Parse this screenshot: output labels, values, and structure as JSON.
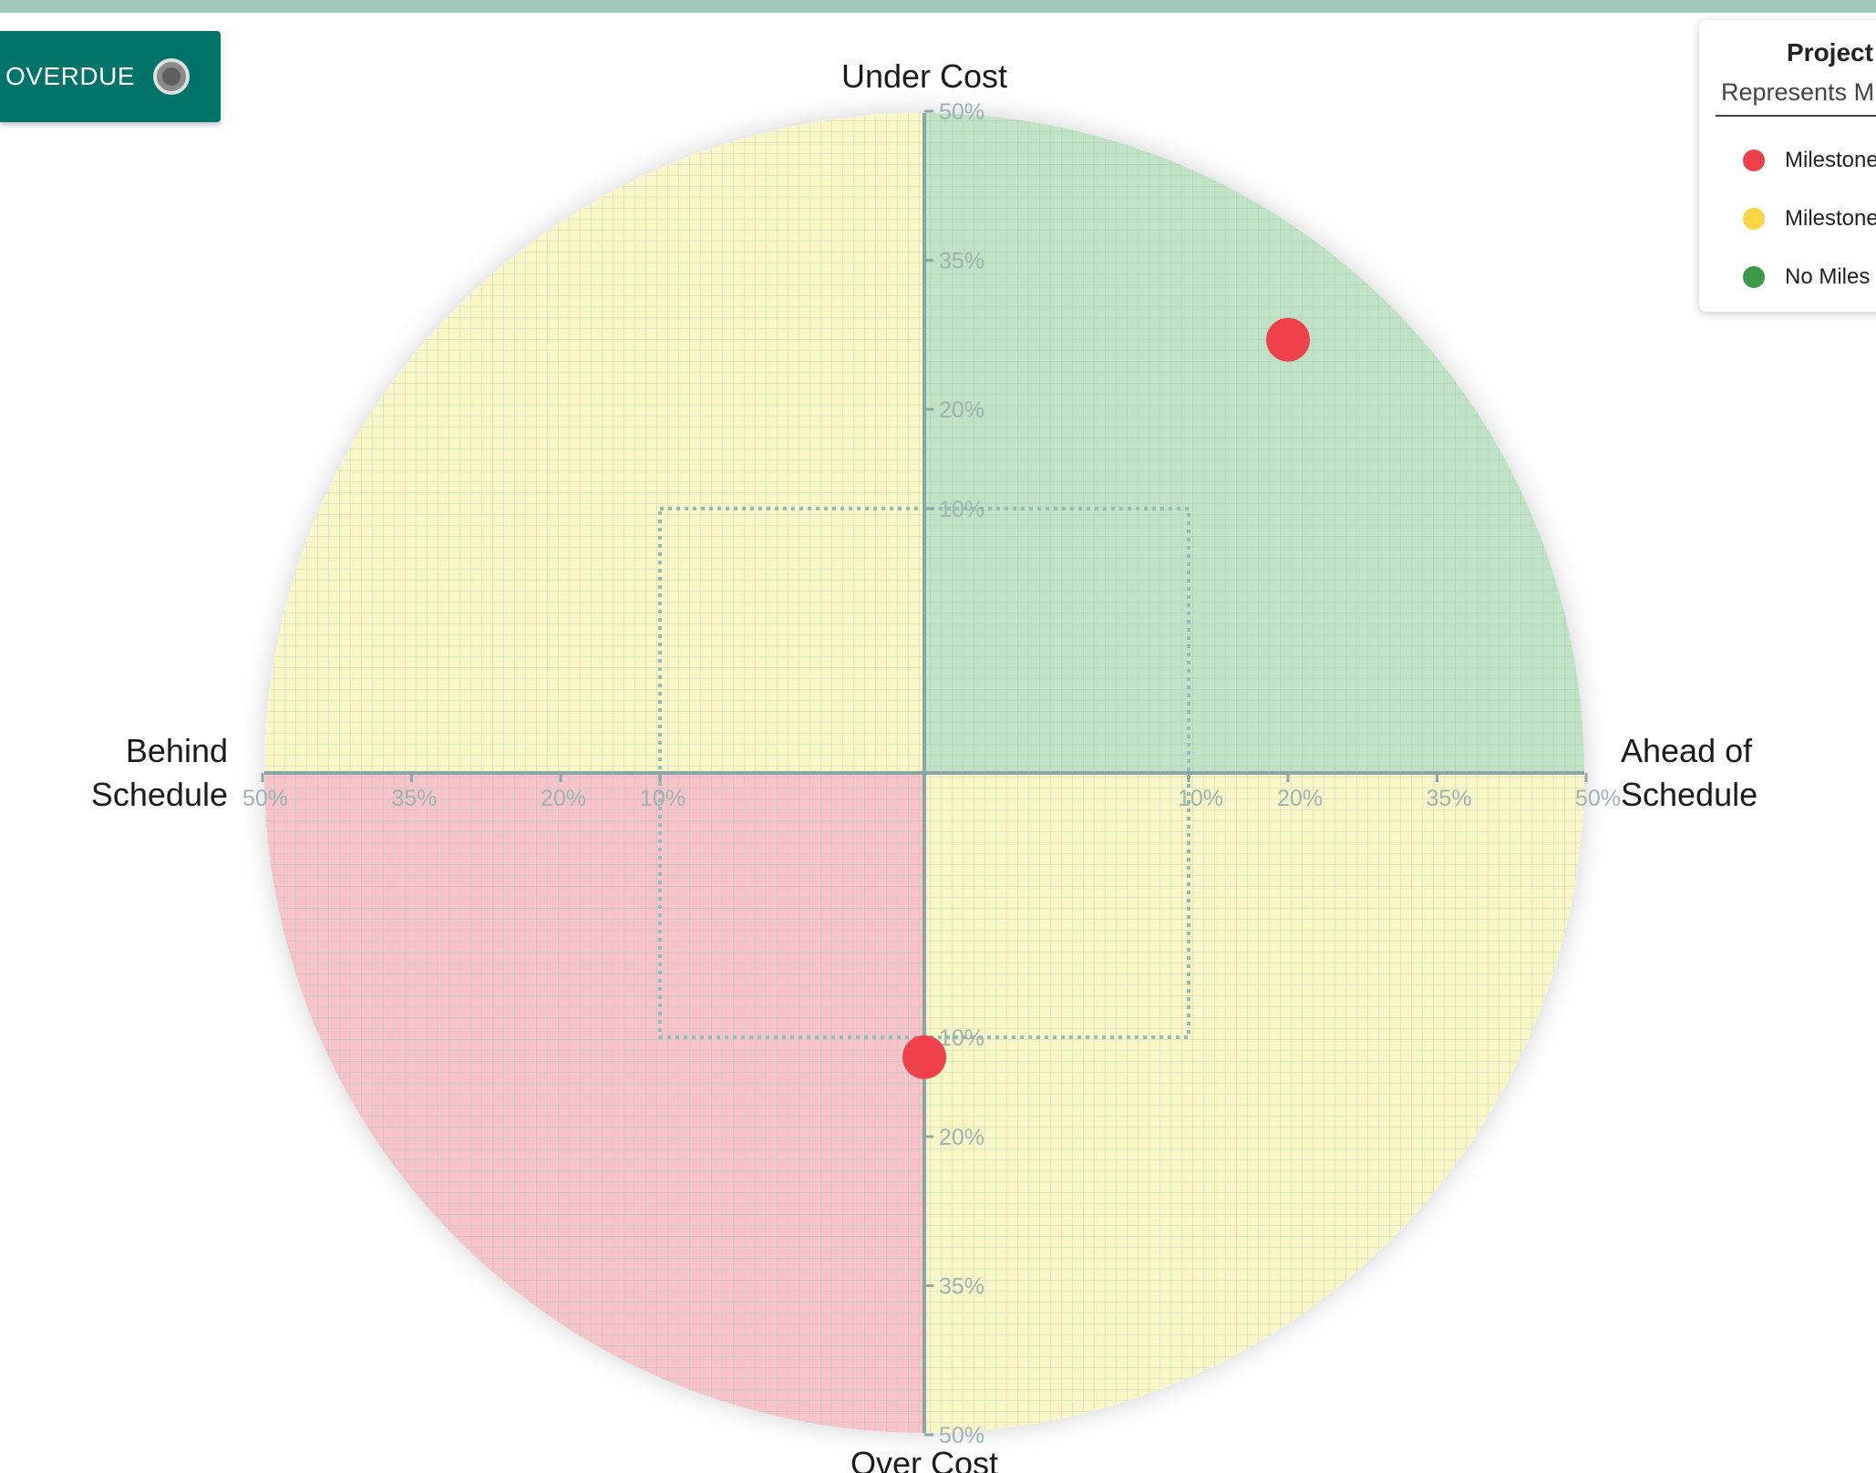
{
  "header": {
    "overdue_toggle_label": "S OVERDUE"
  },
  "legend": {
    "title": "Project",
    "subtitle": "Represents M",
    "items": [
      {
        "label": "Milestone",
        "color": "#ef4149"
      },
      {
        "label": "Milestone",
        "color": "#fdd443"
      },
      {
        "label": "No Miles",
        "color": "#3a9a4a"
      }
    ]
  },
  "chart_data": {
    "type": "scatter",
    "axes": {
      "top": "Under Cost",
      "bottom": "Over Cost",
      "left": [
        "Behind",
        "Schedule"
      ],
      "right": [
        "Ahead of",
        "Schedule"
      ]
    },
    "tick_values": [
      10,
      20,
      35,
      50
    ],
    "tick_labels": [
      "10%",
      "20%",
      "35%",
      "50%"
    ],
    "threshold_box": 10,
    "range": 65,
    "quadrant_colors": {
      "ahead_under": "#bfe3c4",
      "behind_under": "#fbf6c6",
      "behind_over": "#f7c4ca",
      "ahead_over": "#fbf6c6"
    },
    "points": [
      {
        "schedule": 20,
        "cost": 27,
        "status": "Milestone",
        "color": "#ef4149"
      },
      {
        "schedule": 0,
        "cost": -12,
        "status": "Milestone",
        "color": "#ef4149"
      }
    ]
  }
}
